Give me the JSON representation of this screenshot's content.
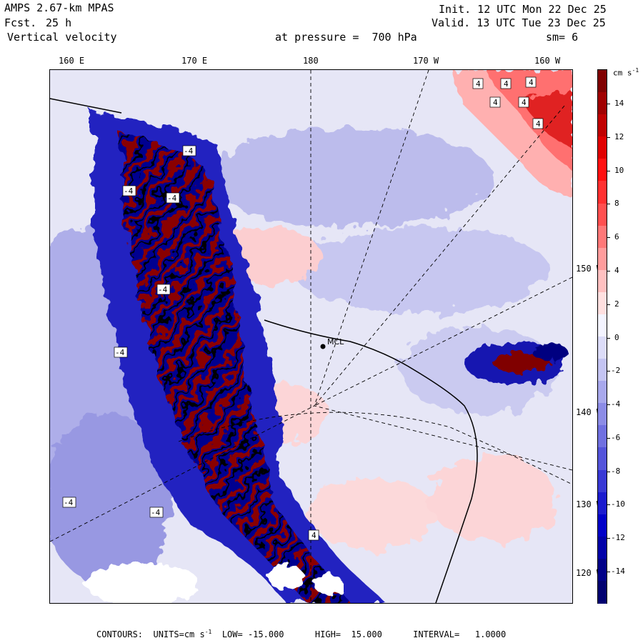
{
  "header": {
    "title": "AMPS 2.67-km MPAS",
    "forecast_label": "Fcst.",
    "forecast_value": "25 h",
    "field_name": "Vertical velocity",
    "level_label": "at pressure =  700 hPa",
    "init": "Init. 12 UTC Mon 22 Dec 25",
    "valid": "Valid. 13 UTC Tue 23 Dec 25",
    "smoothing": "sm= 6"
  },
  "map": {
    "top_lon_labels": [
      "160 E",
      "170 E",
      "180",
      "170 W",
      "160 W"
    ],
    "right_lon_labels": [
      "150 W",
      "140 W",
      "130 W",
      "120 W"
    ],
    "station_label": "MCL",
    "contour_labels": [
      "4",
      "4",
      "4",
      "4",
      "4",
      "4",
      "-4",
      "-4",
      "-4",
      "-4",
      "-4",
      "-4",
      "-4",
      "4"
    ]
  },
  "colorbar": {
    "units": "cm s",
    "units_exp": "-1",
    "labels": [
      "14",
      "12",
      "10",
      "8",
      "6",
      "4",
      "2",
      "0",
      "-2",
      "-4",
      "-6",
      "-8",
      "-10",
      "-12",
      "-14"
    ],
    "colors": [
      "#800000",
      "#a00000",
      "#c00000",
      "#e00000",
      "#ff1010",
      "#ff3030",
      "#ff5050",
      "#ff7878",
      "#ff9c9c",
      "#ffc0c0",
      "#ffe0e0",
      "#f4f4ff",
      "#dcdcf8",
      "#c4c4f2",
      "#a8a8ec",
      "#8c8ce6",
      "#7070e0",
      "#5454da",
      "#3838d4",
      "#1c1cce",
      "#0000c8",
      "#0000a8",
      "#000088",
      "#000070"
    ]
  },
  "footer": {
    "contours_label": "CONTOURS:",
    "units_text": "UNITS=cm s",
    "units_exp": "-1",
    "low_text": "LOW= -15.000",
    "high_text": "HIGH=  15.000",
    "interval_text": "INTERVAL=   1.0000"
  }
}
